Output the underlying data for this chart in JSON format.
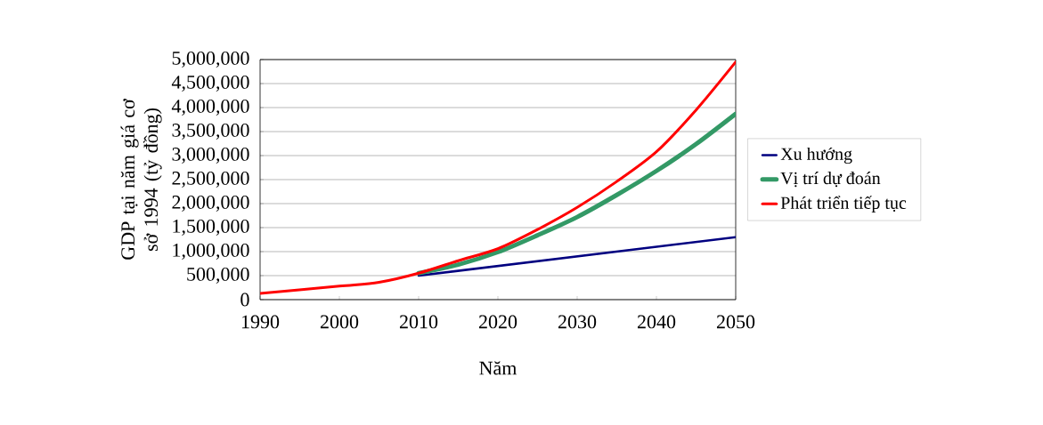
{
  "chart_data": {
    "type": "line",
    "xlabel": "Năm",
    "ylabel": "GDP tại năm giá cơ sở 1994 (tỷ đồng)",
    "xlim": [
      1990,
      2050
    ],
    "xticks": [
      1990,
      2000,
      2010,
      2020,
      2030,
      2040,
      2050
    ],
    "ylim": [
      0,
      5000000
    ],
    "yticks": [
      0,
      {
        "value": 500000,
        "label": "500,000"
      },
      {
        "value": 1000000,
        "label": "1,000,000"
      },
      {
        "value": 1500000,
        "label": "1,500,000"
      },
      {
        "value": 2000000,
        "label": "2,000,000"
      },
      {
        "value": 2500000,
        "label": "2,500,000"
      },
      {
        "value": 3000000,
        "label": "3,000,000"
      },
      {
        "value": 3500000,
        "label": "3,500,000"
      },
      {
        "value": 4000000,
        "label": "4,000,000"
      },
      {
        "value": 4500000,
        "label": "4,500,000"
      },
      {
        "value": 5000000,
        "label": "5,000,000"
      }
    ],
    "grid": "y",
    "legend": "right",
    "marker": "none",
    "line_style": "solid",
    "series": [
      {
        "name": "Xu hướng",
        "color": "#000080",
        "x": [
          2010,
          2050
        ],
        "values": [
          500000,
          1300000
        ]
      },
      {
        "name": "Vị trí dự đoán",
        "color": "#339966",
        "x": [
          2010,
          2015,
          2020,
          2025,
          2030,
          2035,
          2040,
          2045,
          2050
        ],
        "values": [
          550000,
          730000,
          990000,
          1340000,
          1720000,
          2180000,
          2680000,
          3240000,
          3870000
        ]
      },
      {
        "name": "Phát triển tiếp tục",
        "color": "#ff0000",
        "x": [
          1990,
          2000,
          2005,
          2010,
          2015,
          2020,
          2025,
          2030,
          2035,
          2040,
          2045,
          2050
        ],
        "values": [
          130000,
          280000,
          360000,
          550000,
          810000,
          1060000,
          1460000,
          1920000,
          2460000,
          3080000,
          3950000,
          4950000
        ]
      }
    ]
  }
}
